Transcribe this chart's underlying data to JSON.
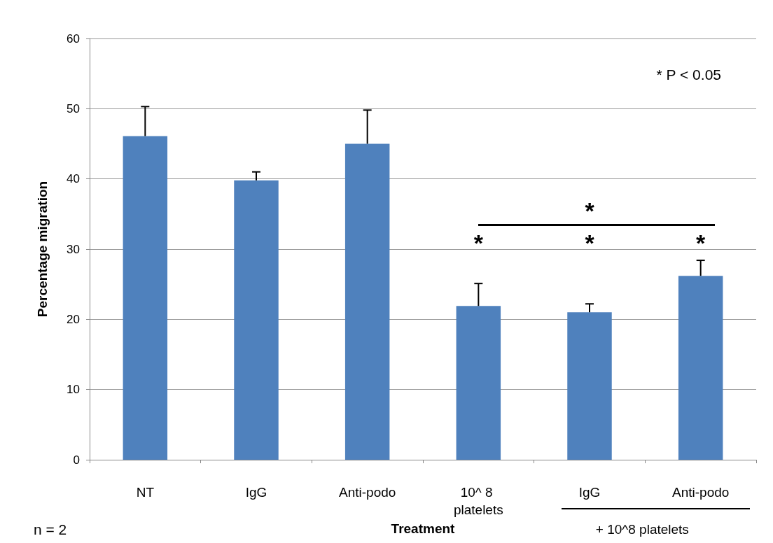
{
  "chart_data": {
    "type": "bar",
    "xlabel": "Treatment",
    "ylabel": "Percentage migration",
    "categories": [
      "NT",
      "IgG",
      "Anti-podo",
      "10^ 8 platelets",
      "IgG",
      "Anti-podo"
    ],
    "values": [
      46.1,
      39.8,
      45.0,
      21.9,
      21.0,
      26.2
    ],
    "errors": [
      4.2,
      1.2,
      4.8,
      3.2,
      1.2,
      2.2
    ],
    "color": "#4f81bd",
    "ylim": [
      0,
      60
    ],
    "yticks": [
      0,
      10,
      20,
      30,
      40,
      50,
      60
    ],
    "grid": "y",
    "annotations": [
      "* P < 0.05",
      "n = 2",
      "+ 10^8 platelets",
      "*",
      "*",
      "*",
      "*"
    ]
  }
}
